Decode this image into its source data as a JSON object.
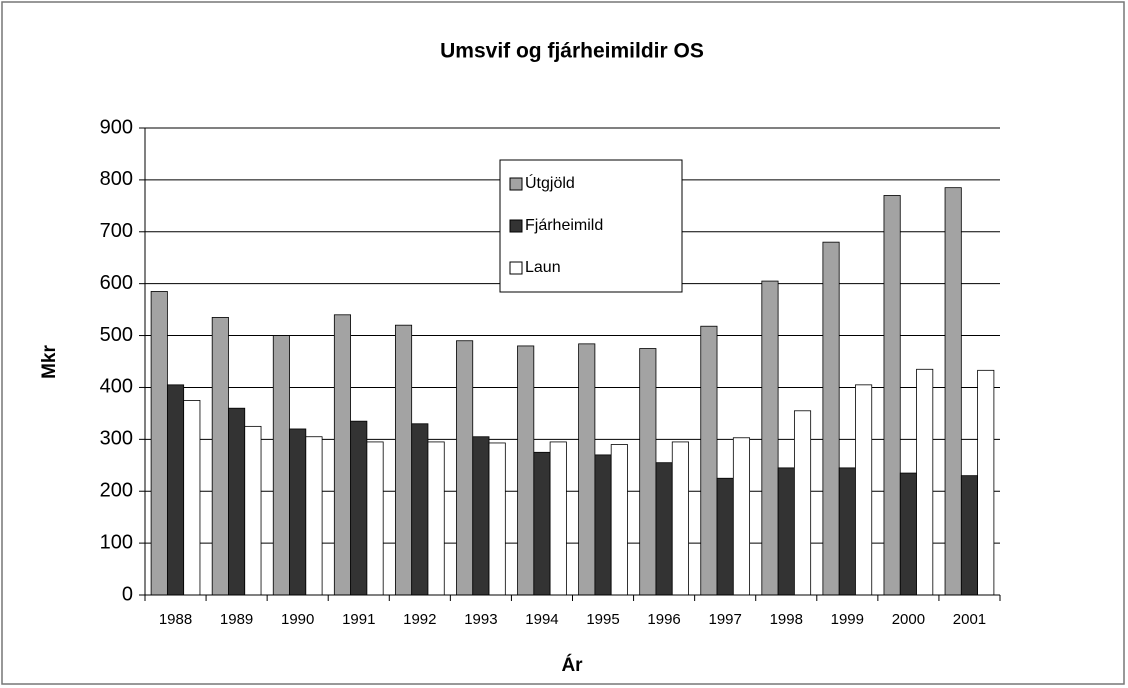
{
  "chart_data": {
    "type": "bar",
    "title": "Umsvif og fjárheimildir OS",
    "x_label": "Ár",
    "y_label": "Mkr",
    "categories": [
      "1988",
      "1989",
      "1990",
      "1991",
      "1992",
      "1993",
      "1994",
      "1995",
      "1996",
      "1997",
      "1998",
      "1999",
      "2000",
      "2001"
    ],
    "series": [
      {
        "name": "Útgjöld",
        "color": "#a3a3a3",
        "values": [
          585,
          535,
          500,
          540,
          520,
          490,
          480,
          484,
          475,
          518,
          605,
          680,
          770,
          785
        ]
      },
      {
        "name": "Fjárheimild",
        "color": "#333333",
        "values": [
          405,
          360,
          320,
          335,
          330,
          305,
          275,
          270,
          255,
          225,
          245,
          245,
          235,
          230
        ]
      },
      {
        "name": "Laun",
        "color": "#ffffff",
        "values": [
          375,
          325,
          305,
          295,
          295,
          293,
          295,
          290,
          295,
          303,
          355,
          405,
          435,
          433
        ]
      }
    ],
    "ylim": [
      0,
      900
    ],
    "yticks": [
      0,
      100,
      200,
      300,
      400,
      500,
      600,
      700,
      800,
      900
    ],
    "grid": true,
    "legend": "top"
  }
}
